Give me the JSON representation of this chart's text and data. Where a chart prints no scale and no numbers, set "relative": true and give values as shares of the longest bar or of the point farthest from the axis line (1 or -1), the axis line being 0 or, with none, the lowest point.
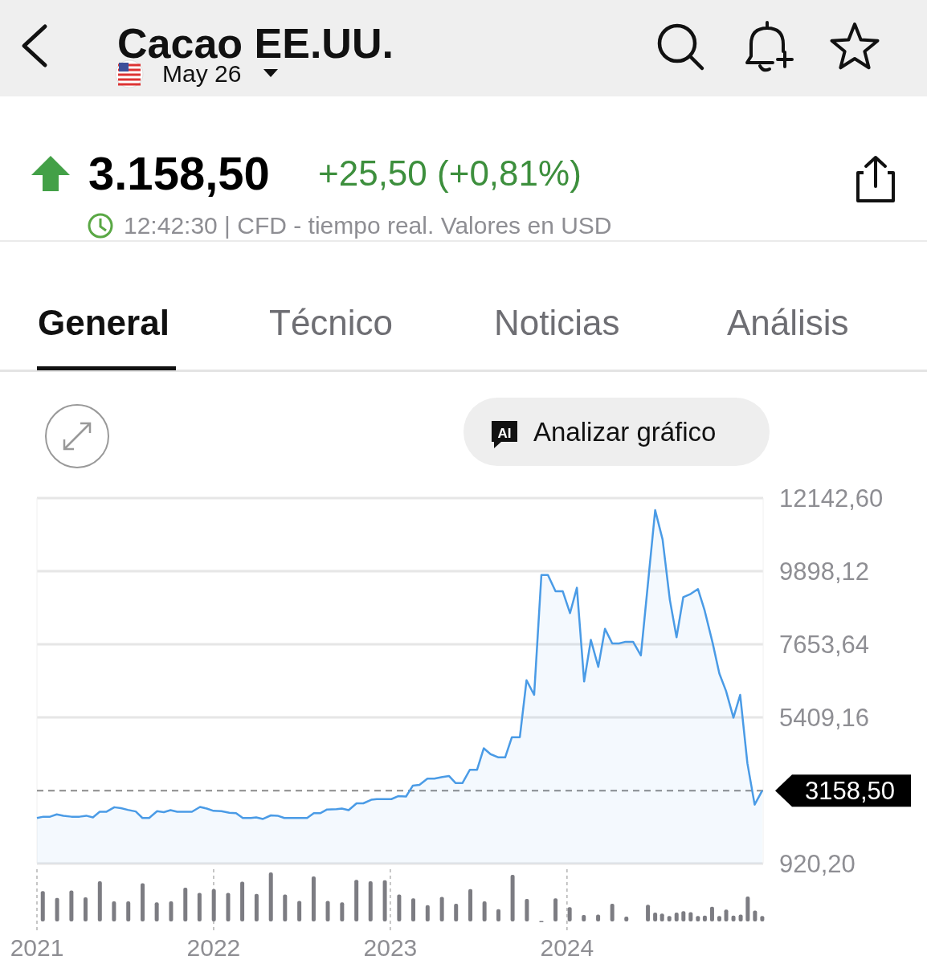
{
  "chart_data": [
    {
      "type": "area",
      "title": "Cacao EE.UU.",
      "subtitle": "May 26",
      "annotations": [
        "3.158,50",
        "+25,50 (+0,81%)",
        "12:42:30 | CFD - tiempo real. Valores en USD",
        "General",
        "Técnico",
        "Noticias",
        "Análisis",
        "AI",
        "Analizar gráfico"
      ],
      "x": [
        2021.0,
        2021.036,
        2021.074,
        2021.112,
        2021.15,
        2021.195,
        2021.241,
        2021.279,
        2021.317,
        2021.355,
        2021.392,
        2021.438,
        2021.476,
        2021.514,
        2021.559,
        2021.597,
        2021.635,
        2021.68,
        2021.718,
        2021.756,
        2021.794,
        2021.877,
        2021.923,
        2021.961,
        2021.999,
        2022.044,
        2022.089,
        2022.127,
        2022.165,
        2022.21,
        2022.241,
        2022.279,
        2022.324,
        2022.362,
        2022.4,
        2022.438,
        2022.483,
        2022.529,
        2022.567,
        2022.605,
        2022.642,
        2022.695,
        2022.726,
        2022.764,
        2022.809,
        2022.847,
        2022.892,
        2022.923,
        2023.006,
        2023.044,
        2023.089,
        2023.127,
        2023.165,
        2023.21,
        2023.249,
        2023.294,
        2023.332,
        2023.37,
        2023.408,
        2023.45,
        2023.491,
        2023.529,
        2023.567,
        2023.612,
        2023.65,
        2023.688,
        2023.733,
        2023.771,
        2023.814,
        2023.855,
        2023.892,
        2023.935,
        2023.976,
        2024.017,
        2024.056,
        2024.097,
        2024.135,
        2024.177,
        2024.215,
        2024.256,
        2024.294,
        2024.332,
        2024.374,
        2024.418,
        2024.499,
        2024.541,
        2024.582,
        2024.62,
        2024.658,
        2024.7,
        2024.741,
        2024.779,
        2024.824,
        2024.862,
        2024.9,
        2024.942,
        2024.98,
        2025.021,
        2025.062,
        2025.105
      ],
      "values": [
        2320,
        2360,
        2360,
        2430,
        2390,
        2360,
        2360,
        2390,
        2340,
        2510,
        2510,
        2650,
        2620,
        2570,
        2520,
        2320,
        2320,
        2530,
        2500,
        2560,
        2510,
        2510,
        2660,
        2610,
        2540,
        2530,
        2480,
        2470,
        2320,
        2320,
        2340,
        2290,
        2400,
        2390,
        2320,
        2320,
        2320,
        2320,
        2470,
        2470,
        2580,
        2590,
        2610,
        2560,
        2770,
        2770,
        2880,
        2900,
        2900,
        2990,
        2980,
        3310,
        3340,
        3530,
        3530,
        3580,
        3610,
        3390,
        3390,
        3800,
        3800,
        4460,
        4280,
        4180,
        4180,
        4800,
        4800,
        6550,
        6100,
        9780,
        9780,
        9280,
        9280,
        8610,
        9390,
        6510,
        7790,
        6960,
        8130,
        7680,
        7680,
        7730,
        7730,
        7310,
        11770,
        10870,
        9020,
        7870,
        9100,
        9200,
        9350,
        8690,
        7700,
        6760,
        6220,
        5400,
        6100,
        4000,
        2730,
        3160
      ],
      "color": "#4a9be6",
      "xlim": [
        2021.0,
        2025.11
      ],
      "ylim": [
        920.2,
        12142.6
      ],
      "yticks": [
        {
          "value": 920.2,
          "label": "920,20"
        },
        {
          "value": 5409.16,
          "label": "5409,16"
        },
        {
          "value": 7653.64,
          "label": "7653,64"
        },
        {
          "value": 9898.12,
          "label": "9898,12"
        },
        {
          "value": 12142.6,
          "label": "12142,60"
        }
      ],
      "grid": "y",
      "tick_labels": "y",
      "ref_lines": [
        {
          "axis": "y",
          "value": 3158.5,
          "label": "3158,50",
          "color": "#8a8a8a",
          "line_style": "dashed"
        }
      ]
    },
    {
      "type": "bar",
      "relative": true,
      "color": "#7c7c82",
      "xlim": [
        2021.0,
        2025.11
      ],
      "xticks": [
        2021,
        2022,
        2023,
        2024
      ],
      "grid": "x",
      "tick_labels": "x",
      "x": [
        2021.033,
        2021.114,
        2021.195,
        2021.275,
        2021.356,
        2021.436,
        2021.517,
        2021.598,
        2021.678,
        2021.759,
        2021.84,
        2021.92,
        2022.001,
        2022.082,
        2022.162,
        2022.243,
        2022.324,
        2022.404,
        2022.485,
        2022.566,
        2022.646,
        2022.727,
        2022.808,
        2022.888,
        2022.969,
        2023.05,
        2023.13,
        2023.211,
        2023.292,
        2023.372,
        2023.453,
        2023.533,
        2023.612,
        2023.692,
        2023.773,
        2023.855,
        2023.935,
        2024.015,
        2024.095,
        2024.176,
        2024.256,
        2024.336,
        2024.458,
        2024.499,
        2024.538,
        2024.579,
        2024.62,
        2024.659,
        2024.7,
        2024.741,
        2024.78,
        2024.821,
        2024.862,
        2024.901,
        2024.942,
        2024.983,
        2025.023,
        2025.064,
        2025.105
      ],
      "values": [
        0.62,
        0.48,
        0.63,
        0.49,
        0.82,
        0.41,
        0.41,
        0.78,
        0.39,
        0.41,
        0.69,
        0.58,
        0.66,
        0.58,
        0.81,
        0.56,
        1,
        0.55,
        0.42,
        0.92,
        0.42,
        0.39,
        0.85,
        0.82,
        0.84,
        0.55,
        0.47,
        0.33,
        0.5,
        0.36,
        0.66,
        0.41,
        0.25,
        0.95,
        0.46,
        0.01,
        0.47,
        0.29,
        0.13,
        0.14,
        0.36,
        0.1,
        0.34,
        0.18,
        0.16,
        0.11,
        0.18,
        0.21,
        0.19,
        0.11,
        0.12,
        0.3,
        0.11,
        0.24,
        0.12,
        0.14,
        0.51,
        0.22,
        0.11
      ]
    }
  ]
}
